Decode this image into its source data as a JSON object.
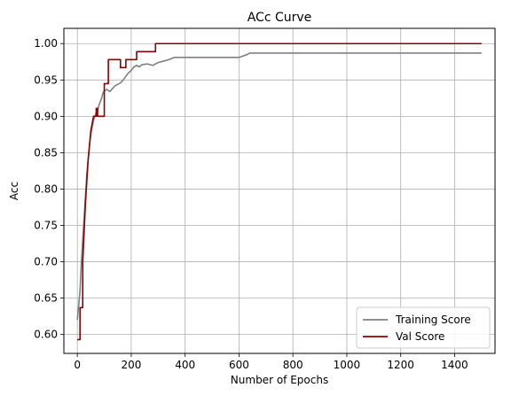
{
  "chart_data": {
    "type": "line",
    "title": "ACc Curve",
    "xlabel": "Number of Epochs",
    "ylabel": "Acc",
    "xlim": [
      -50,
      1550
    ],
    "ylim": [
      0.574,
      1.021
    ],
    "xticks": [
      0,
      200,
      400,
      600,
      800,
      1000,
      1200,
      1400
    ],
    "yticks": [
      0.6,
      0.65,
      0.7,
      0.75,
      0.8,
      0.85,
      0.9,
      0.95,
      1.0
    ],
    "grid": true,
    "legend_position": "lower-right",
    "series": [
      {
        "name": "Training Score",
        "color": "#808080",
        "points": [
          [
            0,
            0.62
          ],
          [
            5,
            0.64
          ],
          [
            10,
            0.66
          ],
          [
            15,
            0.7
          ],
          [
            20,
            0.73
          ],
          [
            25,
            0.76
          ],
          [
            30,
            0.79
          ],
          [
            35,
            0.82
          ],
          [
            40,
            0.84
          ],
          [
            45,
            0.86
          ],
          [
            50,
            0.875
          ],
          [
            55,
            0.885
          ],
          [
            60,
            0.895
          ],
          [
            65,
            0.9
          ],
          [
            70,
            0.905
          ],
          [
            75,
            0.908
          ],
          [
            80,
            0.915
          ],
          [
            85,
            0.92
          ],
          [
            90,
            0.925
          ],
          [
            95,
            0.932
          ],
          [
            100,
            0.935
          ],
          [
            110,
            0.937
          ],
          [
            120,
            0.934
          ],
          [
            130,
            0.938
          ],
          [
            140,
            0.942
          ],
          [
            150,
            0.944
          ],
          [
            160,
            0.946
          ],
          [
            170,
            0.95
          ],
          [
            180,
            0.955
          ],
          [
            190,
            0.96
          ],
          [
            200,
            0.963
          ],
          [
            210,
            0.968
          ],
          [
            220,
            0.97
          ],
          [
            230,
            0.968
          ],
          [
            240,
            0.971
          ],
          [
            260,
            0.972
          ],
          [
            280,
            0.97
          ],
          [
            300,
            0.974
          ],
          [
            320,
            0.976
          ],
          [
            340,
            0.978
          ],
          [
            360,
            0.981
          ],
          [
            400,
            0.981
          ],
          [
            500,
            0.981
          ],
          [
            600,
            0.981
          ],
          [
            630,
            0.985
          ],
          [
            640,
            0.987
          ],
          [
            800,
            0.987
          ],
          [
            1000,
            0.987
          ],
          [
            1200,
            0.987
          ],
          [
            1400,
            0.987
          ],
          [
            1500,
            0.987
          ]
        ]
      },
      {
        "name": "Val Score",
        "color": "#8b0000",
        "points": [
          [
            0,
            0.593
          ],
          [
            10,
            0.593
          ],
          [
            10,
            0.637
          ],
          [
            20,
            0.637
          ],
          [
            20,
            0.7
          ],
          [
            25,
            0.74
          ],
          [
            30,
            0.78
          ],
          [
            35,
            0.81
          ],
          [
            40,
            0.84
          ],
          [
            45,
            0.86
          ],
          [
            50,
            0.88
          ],
          [
            55,
            0.89
          ],
          [
            60,
            0.9
          ],
          [
            70,
            0.9
          ],
          [
            70,
            0.911
          ],
          [
            75,
            0.911
          ],
          [
            75,
            0.9
          ],
          [
            100,
            0.9
          ],
          [
            100,
            0.945
          ],
          [
            115,
            0.945
          ],
          [
            115,
            0.978
          ],
          [
            160,
            0.978
          ],
          [
            160,
            0.967
          ],
          [
            180,
            0.967
          ],
          [
            180,
            0.978
          ],
          [
            220,
            0.978
          ],
          [
            220,
            0.989
          ],
          [
            290,
            0.989
          ],
          [
            290,
            1.0
          ],
          [
            1500,
            1.0
          ]
        ]
      }
    ]
  }
}
